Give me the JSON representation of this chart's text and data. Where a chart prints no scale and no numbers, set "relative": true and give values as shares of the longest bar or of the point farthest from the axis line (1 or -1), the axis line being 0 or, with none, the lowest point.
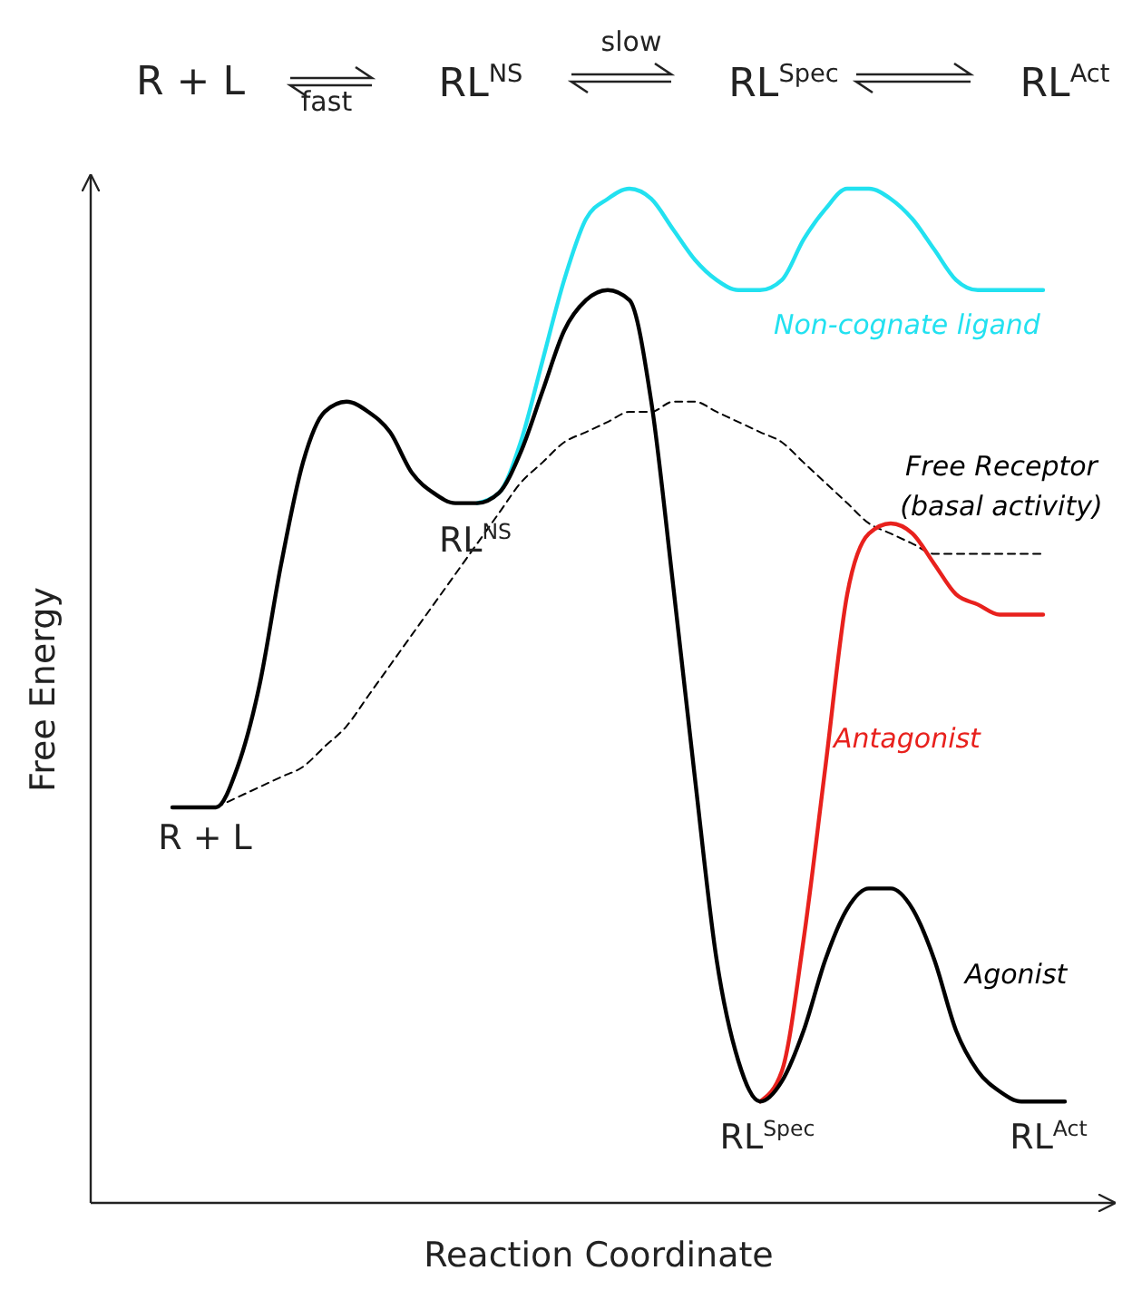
{
  "chart_data": {
    "type": "line",
    "relative": true,
    "xlabel": "Reaction Coordinate",
    "ylabel": "Free Energy",
    "categories": [
      null,
      null,
      null,
      null,
      null,
      null,
      null,
      null,
      null,
      null,
      null,
      null,
      null,
      null,
      null,
      null,
      null,
      null,
      null,
      null,
      null,
      null,
      null,
      null,
      null,
      null,
      null,
      null,
      null,
      null,
      null,
      null,
      null,
      null,
      null,
      null,
      null,
      null,
      null,
      null,
      null,
      null
    ],
    "series": [
      {
        "name": "Free Receptor (basal activity)",
        "color": "#000000",
        "line_style": "dashed",
        "values": [
          null,
          null,
          0.39,
          0.4,
          0.41,
          0.42,
          0.43,
          0.45,
          0.47,
          0.5,
          0.53,
          0.56,
          0.59,
          0.62,
          0.65,
          0.68,
          0.71,
          0.73,
          0.75,
          0.76,
          0.77,
          0.78,
          0.78,
          0.79,
          0.79,
          0.78,
          0.77,
          0.76,
          0.75,
          0.73,
          0.71,
          0.69,
          0.67,
          0.66,
          0.65,
          0.64,
          0.64,
          0.64,
          0.64,
          0.64,
          0.64,
          null
        ]
      },
      {
        "name": "Non-cognate ligand",
        "color": "#22e1f0",
        "values": [
          null,
          null,
          null,
          null,
          null,
          null,
          null,
          null,
          null,
          null,
          null,
          null,
          null,
          null,
          0.69,
          0.7,
          0.75,
          0.83,
          0.91,
          0.97,
          0.99,
          1.0,
          0.99,
          0.96,
          0.93,
          0.91,
          0.9,
          0.9,
          0.91,
          0.95,
          0.98,
          1.0,
          1.0,
          0.99,
          0.97,
          0.94,
          0.91,
          0.9,
          0.9,
          0.9,
          0.9,
          null
        ]
      },
      {
        "name": "Antagonist",
        "color": "#e8211d",
        "values": [
          null,
          null,
          null,
          null,
          null,
          null,
          null,
          null,
          null,
          null,
          null,
          null,
          null,
          null,
          null,
          null,
          null,
          null,
          null,
          null,
          null,
          null,
          null,
          null,
          null,
          null,
          null,
          0.1,
          0.13,
          0.26,
          0.43,
          0.6,
          0.66,
          0.67,
          0.66,
          0.63,
          0.6,
          0.59,
          0.58,
          0.58,
          0.58,
          null
        ]
      },
      {
        "name": "Agonist",
        "color": "#000000",
        "values": [
          0.39,
          0.39,
          0.39,
          0.43,
          0.51,
          0.63,
          0.73,
          0.78,
          0.79,
          0.78,
          0.76,
          0.72,
          0.7,
          0.69,
          0.69,
          0.7,
          0.74,
          0.8,
          0.86,
          0.89,
          0.9,
          0.89,
          0.79,
          0.61,
          0.42,
          0.24,
          0.14,
          0.1,
          0.12,
          0.17,
          0.24,
          0.29,
          0.31,
          0.31,
          0.29,
          0.24,
          0.17,
          0.13,
          0.11,
          0.1,
          0.1,
          0.1
        ]
      }
    ],
    "annotations": [
      "R + L",
      "RL$^{NS}$",
      "RL$^{Spec}$",
      "RL$^{Act}$",
      "R + L",
      "fast",
      "RL$^{NS}$",
      "slow",
      "RL$^{Spec}$",
      "RL$^{Act}$"
    ]
  }
}
